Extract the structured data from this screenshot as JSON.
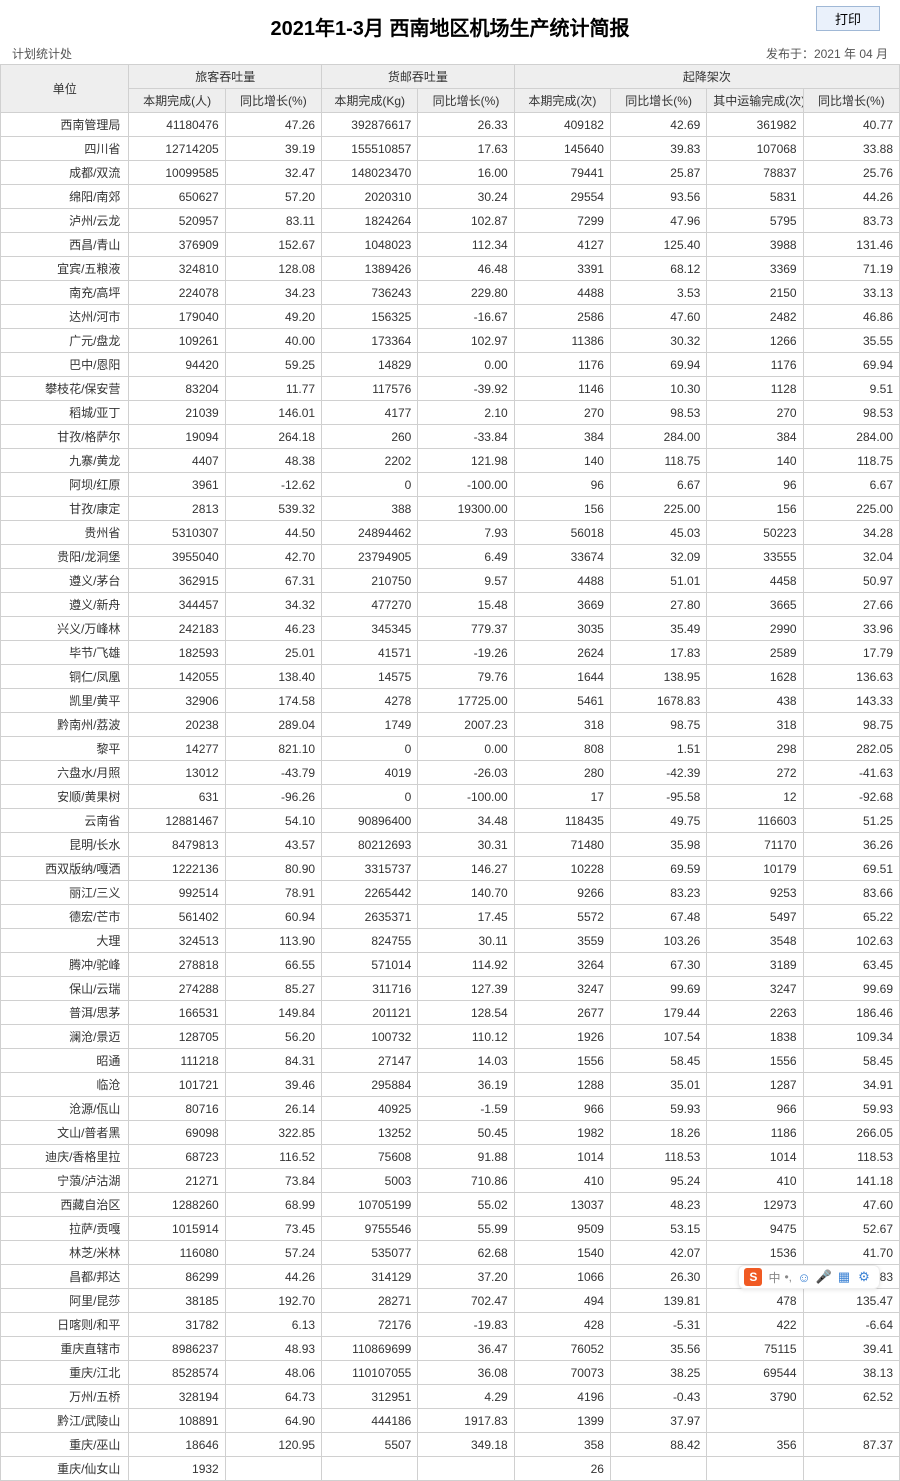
{
  "header": {
    "title": "2021年1-3月 西南地区机场生产统计简报",
    "dept": "计划统计处",
    "published": "发布于：2021 年 04 月",
    "print_label": "打印"
  },
  "table": {
    "columns": {
      "unit": "单位",
      "pax": "旅客吞吐量",
      "cargo": "货邮吞吐量",
      "move": "起降架次",
      "pax_done": "本期完成(人)",
      "pax_yoy": "同比增长(%)",
      "cargo_done": "本期完成(Kg)",
      "cargo_yoy": "同比增长(%)",
      "move_done": "本期完成(次)",
      "move_yoy": "同比增长(%)",
      "move_trans": "其中运输完成(次)",
      "move_trans_yoy": "同比增长(%)"
    },
    "rows": [
      {
        "u": "西南管理局",
        "c": [
          "41180476",
          "47.26",
          "392876617",
          "26.33",
          "409182",
          "42.69",
          "361982",
          "40.77"
        ]
      },
      {
        "u": "四川省",
        "c": [
          "12714205",
          "39.19",
          "155510857",
          "17.63",
          "145640",
          "39.83",
          "107068",
          "33.88"
        ]
      },
      {
        "u": "成都/双流",
        "c": [
          "10099585",
          "32.47",
          "148023470",
          "16.00",
          "79441",
          "25.87",
          "78837",
          "25.76"
        ]
      },
      {
        "u": "绵阳/南郊",
        "c": [
          "650627",
          "57.20",
          "2020310",
          "30.24",
          "29554",
          "93.56",
          "5831",
          "44.26"
        ]
      },
      {
        "u": "泸州/云龙",
        "c": [
          "520957",
          "83.11",
          "1824264",
          "102.87",
          "7299",
          "47.96",
          "5795",
          "83.73"
        ]
      },
      {
        "u": "西昌/青山",
        "c": [
          "376909",
          "152.67",
          "1048023",
          "112.34",
          "4127",
          "125.40",
          "3988",
          "131.46"
        ]
      },
      {
        "u": "宜宾/五粮液",
        "c": [
          "324810",
          "128.08",
          "1389426",
          "46.48",
          "3391",
          "68.12",
          "3369",
          "71.19"
        ]
      },
      {
        "u": "南充/高坪",
        "c": [
          "224078",
          "34.23",
          "736243",
          "229.80",
          "4488",
          "3.53",
          "2150",
          "33.13"
        ]
      },
      {
        "u": "达州/河市",
        "c": [
          "179040",
          "49.20",
          "156325",
          "-16.67",
          "2586",
          "47.60",
          "2482",
          "46.86"
        ]
      },
      {
        "u": "广元/盘龙",
        "c": [
          "109261",
          "40.00",
          "173364",
          "102.97",
          "11386",
          "30.32",
          "1266",
          "35.55"
        ]
      },
      {
        "u": "巴中/恩阳",
        "c": [
          "94420",
          "59.25",
          "14829",
          "0.00",
          "1176",
          "69.94",
          "1176",
          "69.94"
        ]
      },
      {
        "u": "攀枝花/保安营",
        "c": [
          "83204",
          "11.77",
          "117576",
          "-39.92",
          "1146",
          "10.30",
          "1128",
          "9.51"
        ]
      },
      {
        "u": "稻城/亚丁",
        "c": [
          "21039",
          "146.01",
          "4177",
          "2.10",
          "270",
          "98.53",
          "270",
          "98.53"
        ]
      },
      {
        "u": "甘孜/格萨尔",
        "c": [
          "19094",
          "264.18",
          "260",
          "-33.84",
          "384",
          "284.00",
          "384",
          "284.00"
        ]
      },
      {
        "u": "九寨/黄龙",
        "c": [
          "4407",
          "48.38",
          "2202",
          "121.98",
          "140",
          "118.75",
          "140",
          "118.75"
        ]
      },
      {
        "u": "阿坝/红原",
        "c": [
          "3961",
          "-12.62",
          "0",
          "-100.00",
          "96",
          "6.67",
          "96",
          "6.67"
        ]
      },
      {
        "u": "甘孜/康定",
        "c": [
          "2813",
          "539.32",
          "388",
          "19300.00",
          "156",
          "225.00",
          "156",
          "225.00"
        ]
      },
      {
        "u": "贵州省",
        "c": [
          "5310307",
          "44.50",
          "24894462",
          "7.93",
          "56018",
          "45.03",
          "50223",
          "34.28"
        ]
      },
      {
        "u": "贵阳/龙洞堡",
        "c": [
          "3955040",
          "42.70",
          "23794905",
          "6.49",
          "33674",
          "32.09",
          "33555",
          "32.04"
        ]
      },
      {
        "u": "遵义/茅台",
        "c": [
          "362915",
          "67.31",
          "210750",
          "9.57",
          "4488",
          "51.01",
          "4458",
          "50.97"
        ]
      },
      {
        "u": "遵义/新舟",
        "c": [
          "344457",
          "34.32",
          "477270",
          "15.48",
          "3669",
          "27.80",
          "3665",
          "27.66"
        ]
      },
      {
        "u": "兴义/万峰林",
        "c": [
          "242183",
          "46.23",
          "345345",
          "779.37",
          "3035",
          "35.49",
          "2990",
          "33.96"
        ]
      },
      {
        "u": "毕节/飞雄",
        "c": [
          "182593",
          "25.01",
          "41571",
          "-19.26",
          "2624",
          "17.83",
          "2589",
          "17.79"
        ]
      },
      {
        "u": "铜仁/凤凰",
        "c": [
          "142055",
          "138.40",
          "14575",
          "79.76",
          "1644",
          "138.95",
          "1628",
          "136.63"
        ]
      },
      {
        "u": "凯里/黄平",
        "c": [
          "32906",
          "174.58",
          "4278",
          "17725.00",
          "5461",
          "1678.83",
          "438",
          "143.33"
        ]
      },
      {
        "u": "黔南州/荔波",
        "c": [
          "20238",
          "289.04",
          "1749",
          "2007.23",
          "318",
          "98.75",
          "318",
          "98.75"
        ]
      },
      {
        "u": "黎平",
        "c": [
          "14277",
          "821.10",
          "0",
          "0.00",
          "808",
          "1.51",
          "298",
          "282.05"
        ]
      },
      {
        "u": "六盘水/月照",
        "c": [
          "13012",
          "-43.79",
          "4019",
          "-26.03",
          "280",
          "-42.39",
          "272",
          "-41.63"
        ]
      },
      {
        "u": "安顺/黄果树",
        "c": [
          "631",
          "-96.26",
          "0",
          "-100.00",
          "17",
          "-95.58",
          "12",
          "-92.68"
        ]
      },
      {
        "u": "云南省",
        "c": [
          "12881467",
          "54.10",
          "90896400",
          "34.48",
          "118435",
          "49.75",
          "116603",
          "51.25"
        ]
      },
      {
        "u": "昆明/长水",
        "c": [
          "8479813",
          "43.57",
          "80212693",
          "30.31",
          "71480",
          "35.98",
          "71170",
          "36.26"
        ]
      },
      {
        "u": "西双版纳/嘎洒",
        "c": [
          "1222136",
          "80.90",
          "3315737",
          "146.27",
          "10228",
          "69.59",
          "10179",
          "69.51"
        ]
      },
      {
        "u": "丽江/三义",
        "c": [
          "992514",
          "78.91",
          "2265442",
          "140.70",
          "9266",
          "83.23",
          "9253",
          "83.66"
        ]
      },
      {
        "u": "德宏/芒市",
        "c": [
          "561402",
          "60.94",
          "2635371",
          "17.45",
          "5572",
          "67.48",
          "5497",
          "65.22"
        ]
      },
      {
        "u": "大理",
        "c": [
          "324513",
          "113.90",
          "824755",
          "30.11",
          "3559",
          "103.26",
          "3548",
          "102.63"
        ]
      },
      {
        "u": "腾冲/驼峰",
        "c": [
          "278818",
          "66.55",
          "571014",
          "114.92",
          "3264",
          "67.30",
          "3189",
          "63.45"
        ]
      },
      {
        "u": "保山/云瑞",
        "c": [
          "274288",
          "85.27",
          "311716",
          "127.39",
          "3247",
          "99.69",
          "3247",
          "99.69"
        ]
      },
      {
        "u": "普洱/思茅",
        "c": [
          "166531",
          "149.84",
          "201121",
          "128.54",
          "2677",
          "179.44",
          "2263",
          "186.46"
        ]
      },
      {
        "u": "澜沧/景迈",
        "c": [
          "128705",
          "56.20",
          "100732",
          "110.12",
          "1926",
          "107.54",
          "1838",
          "109.34"
        ]
      },
      {
        "u": "昭通",
        "c": [
          "111218",
          "84.31",
          "27147",
          "14.03",
          "1556",
          "58.45",
          "1556",
          "58.45"
        ]
      },
      {
        "u": "临沧",
        "c": [
          "101721",
          "39.46",
          "295884",
          "36.19",
          "1288",
          "35.01",
          "1287",
          "34.91"
        ]
      },
      {
        "u": "沧源/佤山",
        "c": [
          "80716",
          "26.14",
          "40925",
          "-1.59",
          "966",
          "59.93",
          "966",
          "59.93"
        ]
      },
      {
        "u": "文山/普者黑",
        "c": [
          "69098",
          "322.85",
          "13252",
          "50.45",
          "1982",
          "18.26",
          "1186",
          "266.05"
        ]
      },
      {
        "u": "迪庆/香格里拉",
        "c": [
          "68723",
          "116.52",
          "75608",
          "91.88",
          "1014",
          "118.53",
          "1014",
          "118.53"
        ]
      },
      {
        "u": "宁蒗/泸沽湖",
        "c": [
          "21271",
          "73.84",
          "5003",
          "710.86",
          "410",
          "95.24",
          "410",
          "141.18"
        ]
      },
      {
        "u": "西藏自治区",
        "c": [
          "1288260",
          "68.99",
          "10705199",
          "55.02",
          "13037",
          "48.23",
          "12973",
          "47.60"
        ]
      },
      {
        "u": "拉萨/贡嘎",
        "c": [
          "1015914",
          "73.45",
          "9755546",
          "55.99",
          "9509",
          "53.15",
          "9475",
          "52.67"
        ]
      },
      {
        "u": "林芝/米林",
        "c": [
          "116080",
          "57.24",
          "535077",
          "62.68",
          "1540",
          "42.07",
          "1536",
          "41.70"
        ]
      },
      {
        "u": "昌都/邦达",
        "c": [
          "86299",
          "44.26",
          "314129",
          "37.20",
          "1066",
          "26.30",
          "1062",
          "25.83"
        ]
      },
      {
        "u": "阿里/昆莎",
        "c": [
          "38185",
          "192.70",
          "28271",
          "702.47",
          "494",
          "139.81",
          "478",
          "135.47"
        ]
      },
      {
        "u": "日喀则/和平",
        "c": [
          "31782",
          "6.13",
          "72176",
          "-19.83",
          "428",
          "-5.31",
          "422",
          "-6.64"
        ]
      },
      {
        "u": "重庆直辖市",
        "c": [
          "8986237",
          "48.93",
          "110869699",
          "36.47",
          "76052",
          "35.56",
          "75115",
          "39.41"
        ]
      },
      {
        "u": "重庆/江北",
        "c": [
          "8528574",
          "48.06",
          "110107055",
          "36.08",
          "70073",
          "38.25",
          "69544",
          "38.13"
        ]
      },
      {
        "u": "万州/五桥",
        "c": [
          "328194",
          "64.73",
          "312951",
          "4.29",
          "4196",
          "-0.43",
          "3790",
          "62.52"
        ]
      },
      {
        "u": "黔江/武陵山",
        "c": [
          "108891",
          "64.90",
          "444186",
          "1917.83",
          "1399",
          "37.97",
          "",
          ""
        ]
      },
      {
        "u": "重庆/巫山",
        "c": [
          "18646",
          "120.95",
          "5507",
          "349.18",
          "358",
          "88.42",
          "356",
          "87.37"
        ]
      },
      {
        "u": "重庆/仙女山",
        "c": [
          "1932",
          "",
          "",
          "",
          "26",
          "",
          "",
          ""
        ]
      }
    ]
  },
  "widget": {
    "logo": "S",
    "sep": "中",
    "dot": "•,"
  },
  "style": {
    "header_bg": "#eeeeee",
    "border": "#d0d0d0",
    "print_bg": "#eaf1fb",
    "print_border": "#a0b8d6"
  }
}
